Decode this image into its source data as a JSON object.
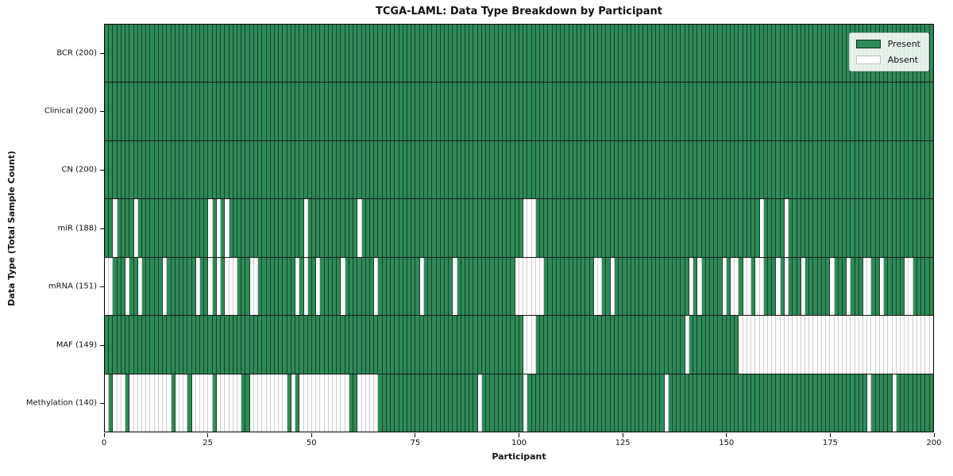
{
  "title": "TCGA-LAML: Data Type Breakdown by Participant",
  "legend": {
    "present_label": "Present",
    "absent_label": "Absent"
  },
  "colors": {
    "present": "#2e8b57",
    "absent": "#ffffff"
  },
  "chart_data": {
    "type": "heatmap",
    "title": "TCGA-LAML: Data Type Breakdown by Participant",
    "xlabel": "Participant",
    "ylabel": "Data Type (Total Sample Count)",
    "x_range": [
      0,
      200
    ],
    "x_ticks": [
      0,
      25,
      50,
      75,
      100,
      125,
      150,
      175,
      200
    ],
    "n_participants": 200,
    "legend_entries": [
      "Present",
      "Absent"
    ],
    "legend_position": "upper right",
    "grid": false,
    "rows": [
      {
        "name": "bcr",
        "label": "BCR (200)",
        "present_count": 200,
        "absent_participants": []
      },
      {
        "name": "clinical",
        "label": "Clinical (200)",
        "present_count": 200,
        "absent_participants": []
      },
      {
        "name": "cn",
        "label": "CN (200)",
        "present_count": 200,
        "absent_participants": []
      },
      {
        "name": "mir",
        "label": "miR (188)",
        "present_count": 188,
        "absent_participants": [
          2,
          7,
          25,
          27,
          29,
          48,
          61,
          101,
          102,
          103,
          158,
          164
        ]
      },
      {
        "name": "mrna",
        "label": "mRNA (151)",
        "present_count": 151,
        "absent_participants": [
          0,
          1,
          5,
          8,
          14,
          22,
          25,
          27,
          29,
          30,
          31,
          35,
          36,
          46,
          48,
          51,
          57,
          65,
          76,
          84,
          99,
          100,
          101,
          102,
          103,
          104,
          105,
          118,
          119,
          122,
          141,
          143,
          149,
          151,
          152,
          154,
          155,
          157,
          158,
          162,
          164,
          168,
          175,
          179,
          183,
          184,
          187,
          193,
          194
        ]
      },
      {
        "name": "maf",
        "label": "MAF (149)",
        "present_count": 149,
        "absent_participants": [
          101,
          102,
          103,
          140,
          153,
          154,
          155,
          156,
          157,
          158,
          159,
          160,
          161,
          162,
          163,
          164,
          165,
          166,
          167,
          168,
          169,
          170,
          171,
          172,
          173,
          174,
          175,
          176,
          177,
          178,
          179,
          180,
          181,
          182,
          183,
          184,
          185,
          186,
          187,
          188,
          189,
          190,
          191,
          192,
          193,
          194,
          195,
          196,
          197,
          198,
          199
        ]
      },
      {
        "name": "methylation",
        "label": "Methylation (140)",
        "present_count": 140,
        "absent_participants": [
          0,
          2,
          3,
          4,
          6,
          7,
          8,
          9,
          10,
          11,
          12,
          13,
          14,
          15,
          17,
          18,
          19,
          21,
          22,
          23,
          24,
          25,
          27,
          28,
          29,
          30,
          31,
          32,
          35,
          36,
          37,
          38,
          39,
          40,
          41,
          42,
          43,
          45,
          47,
          48,
          49,
          50,
          51,
          52,
          53,
          54,
          55,
          56,
          57,
          58,
          61,
          62,
          63,
          64,
          65,
          90,
          101,
          135,
          184,
          190
        ]
      }
    ]
  }
}
